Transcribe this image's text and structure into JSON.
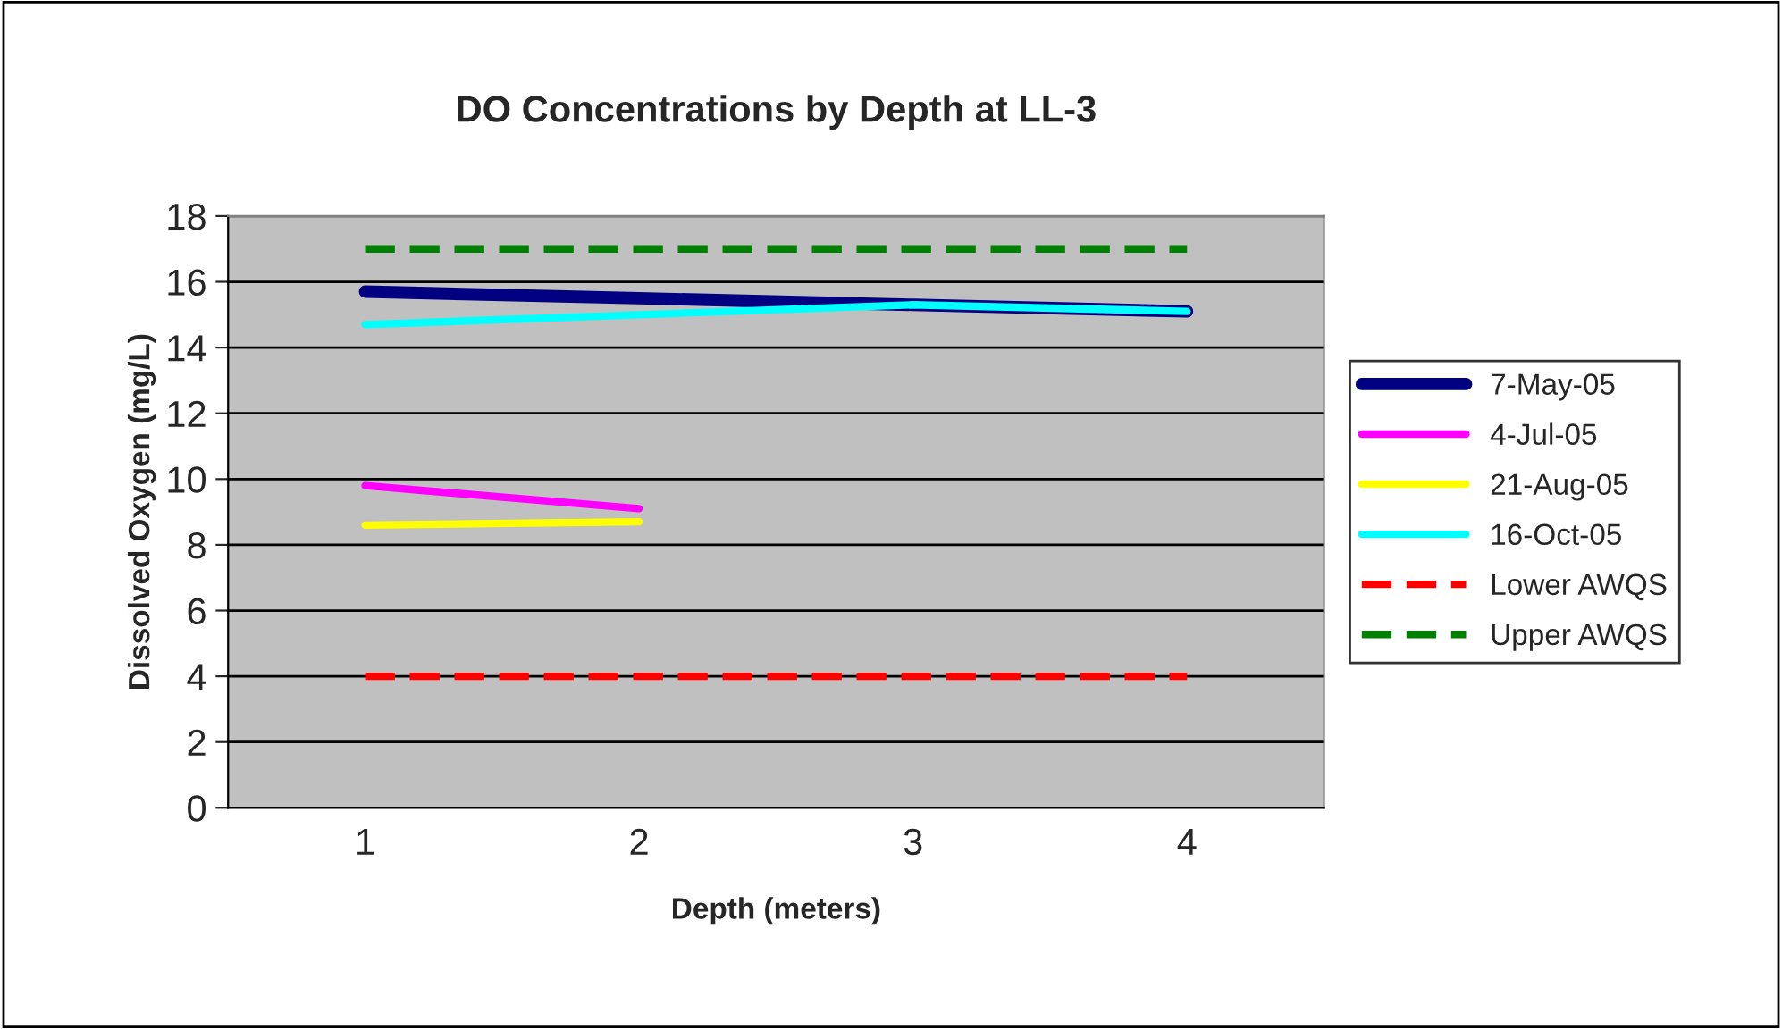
{
  "chart_data": {
    "type": "line",
    "title": "DO Concentrations by Depth at LL-3",
    "xlabel": "Depth (meters)",
    "ylabel": "Dissolved Oxygen (mg/L)",
    "categories": [
      "1",
      "2",
      "3",
      "4"
    ],
    "series": [
      {
        "name": "7-May-05",
        "color": "#000080",
        "values": [
          15.7,
          15.5,
          15.3,
          15.1
        ]
      },
      {
        "name": "4-Jul-05",
        "color": "#ff00ff",
        "values": [
          9.8,
          9.1,
          null,
          null
        ]
      },
      {
        "name": "21-Aug-05",
        "color": "#ffff00",
        "values": [
          8.6,
          8.7,
          null,
          null
        ]
      },
      {
        "name": "16-Oct-05",
        "color": "#00ffff",
        "values": [
          14.7,
          15.0,
          15.3,
          15.1
        ]
      },
      {
        "name": "Lower AWQS",
        "color": "#ff0000",
        "line_style": "dashed",
        "values": [
          4,
          4,
          4,
          4
        ]
      },
      {
        "name": "Upper AWQS",
        "color": "#008000",
        "line_style": "dashed",
        "values": [
          17,
          17,
          17,
          17
        ]
      }
    ],
    "ylim": [
      0,
      18
    ],
    "yticks": [
      0,
      2,
      4,
      6,
      8,
      10,
      12,
      14,
      16,
      18
    ],
    "grid": "y",
    "legend": "right",
    "marker": "none",
    "line_style": "solid"
  }
}
